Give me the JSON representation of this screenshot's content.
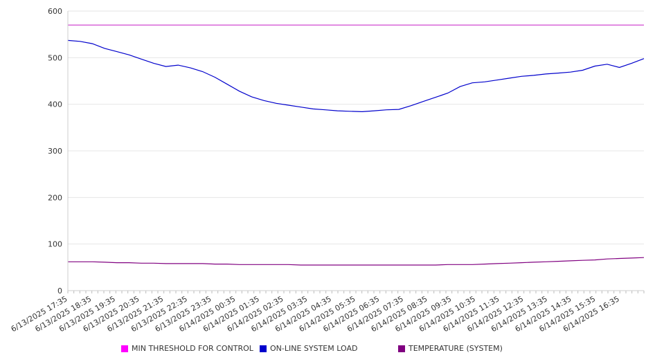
{
  "chart_data": {
    "type": "line",
    "title": "",
    "xlabel": "",
    "ylabel": "",
    "ylim": [
      0,
      600
    ],
    "y_ticks": [
      0,
      100,
      200,
      300,
      400,
      500,
      600
    ],
    "grid": "horizontal",
    "legend_position": "bottom",
    "x_labels": [
      "6/13/2025 17:35",
      "6/13/2025 18:35",
      "6/13/2025 19:35",
      "6/13/2025 20:35",
      "6/13/2025 21:35",
      "6/13/2025 22:35",
      "6/13/2025 23:35",
      "6/14/2025 00:35",
      "6/14/2025 01:35",
      "6/14/2025 02:35",
      "6/14/2025 03:35",
      "6/14/2025 04:35",
      "6/14/2025 05:35",
      "6/14/2025 06:35",
      "6/14/2025 07:35",
      "6/14/2025 08:35",
      "6/14/2025 09:35",
      "6/14/2025 10:35",
      "6/14/2025 11:35",
      "6/14/2025 12:35",
      "6/14/2025 13:35",
      "6/14/2025 14:35",
      "6/14/2025 15:35",
      "6/14/2025 16:35"
    ],
    "series": [
      {
        "name": "MIN THRESHOLD FOR CONTROL",
        "color": "#cc33cc",
        "values": [
          570,
          570,
          570,
          570,
          570,
          570,
          570,
          570,
          570,
          570,
          570,
          570,
          570,
          570,
          570,
          570,
          570,
          570,
          570,
          570,
          570,
          570,
          570,
          570,
          570,
          570,
          570,
          570,
          570,
          570,
          570,
          570,
          570,
          570,
          570,
          570,
          570,
          570,
          570,
          570,
          570,
          570,
          570,
          570,
          570,
          570,
          570,
          570
        ]
      },
      {
        "name": "ON-LINE SYSTEM LOAD",
        "color": "#0000cc",
        "values": [
          537,
          535,
          530,
          520,
          513,
          506,
          497,
          488,
          481,
          484,
          478,
          470,
          458,
          443,
          428,
          416,
          408,
          402,
          398,
          394,
          390,
          388,
          386,
          385,
          384,
          386,
          388,
          389,
          397,
          406,
          415,
          424,
          438,
          446,
          448,
          452,
          456,
          460,
          462,
          465,
          467,
          469,
          473,
          482,
          486,
          479,
          488,
          498
        ]
      },
      {
        "name": "TEMPERATURE (SYSTEM)",
        "color": "#800080",
        "values": [
          62,
          62,
          62,
          61,
          60,
          60,
          59,
          59,
          58,
          58,
          58,
          58,
          57,
          57,
          56,
          56,
          56,
          56,
          56,
          55,
          55,
          55,
          55,
          55,
          55,
          55,
          55,
          55,
          55,
          55,
          55,
          56,
          56,
          56,
          57,
          58,
          59,
          60,
          61,
          62,
          63,
          64,
          65,
          66,
          68,
          69,
          70,
          71
        ]
      }
    ]
  }
}
